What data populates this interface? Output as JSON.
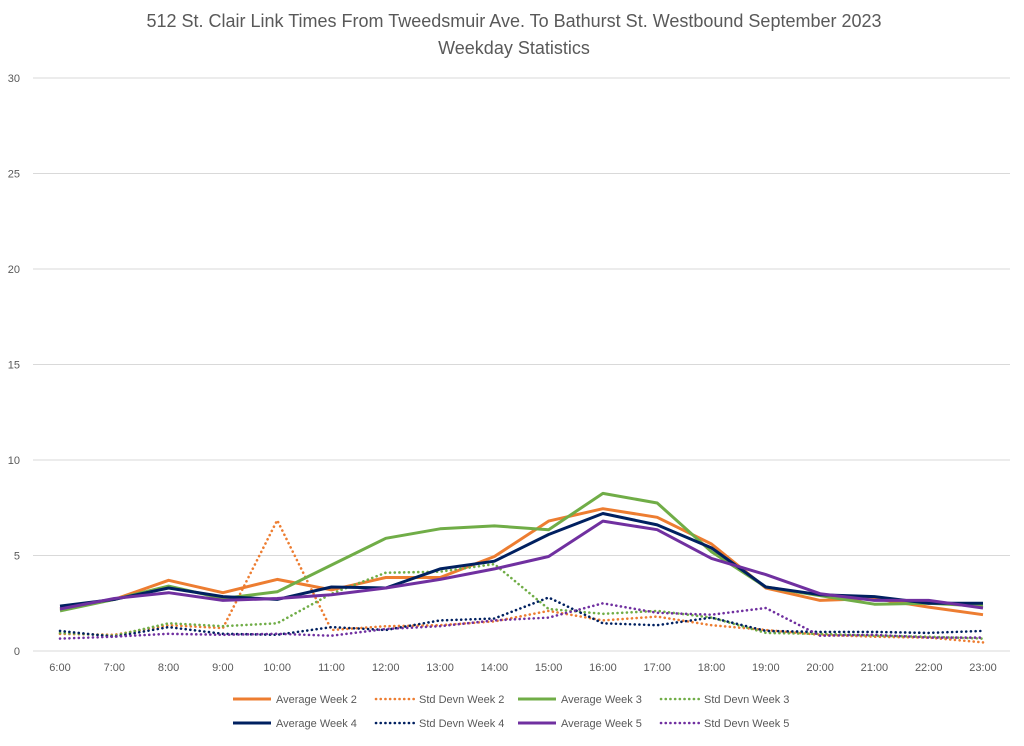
{
  "chart_data": {
    "type": "line",
    "title": "512 St. Clair Link Times From Tweedsmuir Ave. To Bathurst St. Westbound September 2023",
    "subtitle": "Weekday Statistics",
    "xlabel": "",
    "ylabel": "",
    "ylim": [
      0,
      30
    ],
    "yticks": [
      0,
      5,
      10,
      15,
      20,
      25,
      30
    ],
    "grid": true,
    "legend_position": "bottom",
    "categories": [
      "6:00",
      "7:00",
      "8:00",
      "9:00",
      "10:00",
      "11:00",
      "12:00",
      "13:00",
      "14:00",
      "15:00",
      "16:00",
      "17:00",
      "18:00",
      "19:00",
      "20:00",
      "21:00",
      "22:00",
      "23:00"
    ],
    "series": [
      {
        "name": "Average Week 2",
        "style": "solid",
        "color": "#ed7d31",
        "values": [
          2.2,
          2.7,
          3.7,
          3.05,
          3.75,
          3.2,
          3.85,
          3.85,
          4.95,
          6.8,
          7.45,
          7.0,
          5.6,
          3.3,
          2.65,
          2.75,
          2.3,
          1.9
        ]
      },
      {
        "name": "Std Devn Week 2",
        "style": "dotted",
        "color": "#ed7d31",
        "values": [
          0.9,
          0.85,
          1.35,
          1.2,
          6.85,
          1.1,
          1.3,
          1.35,
          1.55,
          2.1,
          1.6,
          1.8,
          1.35,
          1.1,
          0.85,
          0.75,
          0.7,
          0.45
        ]
      },
      {
        "name": "Average Week 3",
        "style": "solid",
        "color": "#70ad47",
        "values": [
          2.1,
          2.7,
          3.4,
          2.75,
          3.1,
          4.5,
          5.9,
          6.4,
          6.55,
          6.35,
          8.25,
          7.75,
          5.2,
          3.35,
          2.9,
          2.45,
          2.5,
          2.35
        ]
      },
      {
        "name": "Std Devn Week 3",
        "style": "dotted",
        "color": "#70ad47",
        "values": [
          0.95,
          0.8,
          1.45,
          1.3,
          1.45,
          3.0,
          4.1,
          4.15,
          4.55,
          2.2,
          1.95,
          2.1,
          1.75,
          0.95,
          0.9,
          0.8,
          0.75,
          0.65
        ]
      },
      {
        "name": "Average Week 4",
        "style": "solid",
        "color": "#002060",
        "values": [
          2.35,
          2.7,
          3.3,
          2.85,
          2.7,
          3.35,
          3.3,
          4.3,
          4.7,
          6.1,
          7.2,
          6.6,
          5.4,
          3.35,
          2.95,
          2.85,
          2.5,
          2.5
        ]
      },
      {
        "name": "Std Devn Week 4",
        "style": "dotted",
        "color": "#002060",
        "values": [
          1.05,
          0.75,
          1.25,
          0.9,
          0.85,
          1.25,
          1.1,
          1.6,
          1.7,
          2.8,
          1.45,
          1.35,
          1.75,
          1.05,
          1.0,
          1.0,
          0.95,
          1.05
        ]
      },
      {
        "name": "Average Week 5",
        "style": "solid",
        "color": "#7030a0",
        "values": [
          2.2,
          2.75,
          3.05,
          2.65,
          2.75,
          2.95,
          3.3,
          3.75,
          4.3,
          4.95,
          6.8,
          6.35,
          4.85,
          4.0,
          3.0,
          2.65,
          2.65,
          2.25
        ]
      },
      {
        "name": "Std Devn Week 5",
        "style": "dotted",
        "color": "#7030a0",
        "values": [
          0.65,
          0.75,
          0.9,
          0.85,
          0.9,
          0.8,
          1.15,
          1.3,
          1.6,
          1.75,
          2.5,
          2.0,
          1.9,
          2.25,
          0.8,
          0.85,
          0.7,
          0.7
        ]
      }
    ]
  }
}
